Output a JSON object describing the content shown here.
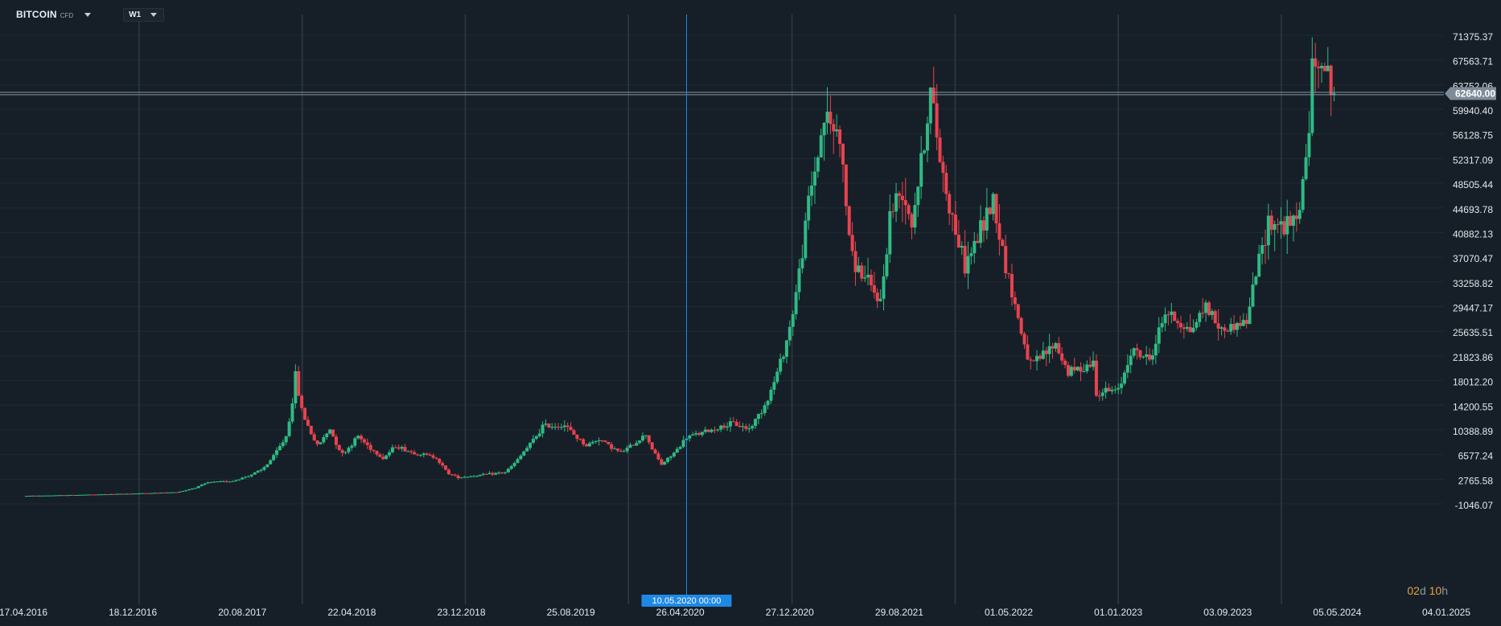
{
  "header": {
    "symbol": "BITCOIN",
    "symbol_type": "CFD",
    "timeframe": "W1"
  },
  "countdown": {
    "days": "02",
    "days_unit": "d",
    "hours": "10",
    "hours_unit": "h"
  },
  "colors": {
    "background": "#161f27",
    "bullish": "#2fba84",
    "bearish": "#e8434f",
    "crosshair": "#1e88e5",
    "price_line": "#8896a3",
    "grid": "#1f2a33",
    "text": "#e3e8ed"
  },
  "chart_data": {
    "type": "candlestick",
    "instrument": "BITCOIN",
    "timeframe": "W1",
    "y_ticks": [
      71375.37,
      67563.71,
      63752.06,
      59940.4,
      56128.75,
      52317.09,
      48505.44,
      44693.78,
      40882.13,
      37070.47,
      33258.82,
      29447.17,
      25635.51,
      21823.86,
      18012.2,
      14200.55,
      10388.89,
      6577.24,
      2765.58,
      -1046.07
    ],
    "y_tick_labels": [
      "71375.37",
      "67563.71",
      "63752.06",
      "59940.40",
      "56128.75",
      "52317.09",
      "48505.44",
      "44693.78",
      "40882.13",
      "37070.47",
      "33258.82",
      "29447.17",
      "25635.51",
      "21823.86",
      "18012.20",
      "14200.55",
      "10388.89",
      "6577.24",
      "2765.58",
      "-1046.07"
    ],
    "x_tick_labels": [
      "17.04.2016",
      "18.12.2016",
      "20.08.2017",
      "22.04.2018",
      "23.12.2018",
      "25.08.2019",
      "26.04.2020",
      "27.12.2020",
      "29.08.2021",
      "01.05.2022",
      "01.01.2023",
      "03.09.2023",
      "05.05.2024",
      "04.01.2025"
    ],
    "current_price": 62640.0,
    "current_price_label": "62640.00",
    "crosshair_label": "10.05.2020 00:00",
    "anchors": [
      [
        "17.04.2016",
        430
      ],
      [
        "18.12.2016",
        790
      ],
      [
        "26.03.2017",
        1000
      ],
      [
        "04.06.2017",
        2500
      ],
      [
        "30.07.2017",
        2750
      ],
      [
        "01.10.2017",
        4400
      ],
      [
        "05.11.2017",
        7300
      ],
      [
        "26.11.2017",
        9700
      ],
      [
        "17.12.2017",
        19000
      ],
      [
        "31.12.2017",
        13800
      ],
      [
        "04.02.2018",
        8200
      ],
      [
        "04.03.2018",
        10800
      ],
      [
        "01.04.2018",
        6900
      ],
      [
        "06.05.2018",
        9700
      ],
      [
        "01.07.2018",
        6300
      ],
      [
        "29.07.2018",
        8200
      ],
      [
        "02.09.2018",
        7200
      ],
      [
        "28.10.2018",
        6400
      ],
      [
        "25.11.2018",
        3900
      ],
      [
        "16.12.2018",
        3300
      ],
      [
        "24.02.2019",
        3800
      ],
      [
        "31.03.2019",
        4100
      ],
      [
        "12.05.2019",
        7300
      ],
      [
        "23.06.2019",
        11200
      ],
      [
        "11.08.2019",
        11400
      ],
      [
        "29.09.2019",
        8200
      ],
      [
        "27.10.2019",
        9300
      ],
      [
        "15.12.2019",
        7100
      ],
      [
        "09.02.2020",
        10000
      ],
      [
        "15.03.2020",
        5300
      ],
      [
        "10.05.2020",
        9500
      ],
      [
        "26.07.2020",
        11100
      ],
      [
        "23.08.2020",
        11600
      ],
      [
        "27.09.2020",
        10800
      ],
      [
        "08.11.2020",
        15500
      ],
      [
        "27.12.2020",
        26500
      ],
      [
        "07.02.2021",
        46000
      ],
      [
        "14.03.2021",
        59000
      ],
      [
        "18.04.2021",
        56000
      ],
      [
        "16.05.2021",
        37000
      ],
      [
        "18.07.2021",
        30500
      ],
      [
        "08.08.2021",
        44000
      ],
      [
        "05.09.2021",
        48000
      ],
      [
        "26.09.2021",
        43000
      ],
      [
        "07.11.2021",
        63000
      ],
      [
        "05.12.2021",
        50000
      ],
      [
        "23.01.2022",
        36000
      ],
      [
        "27.03.2022",
        46500
      ],
      [
        "15.05.2022",
        30000
      ],
      [
        "19.06.2022",
        20500
      ],
      [
        "14.08.2022",
        24000
      ],
      [
        "11.09.2022",
        19500
      ],
      [
        "06.11.2022",
        21000
      ],
      [
        "13.11.2022",
        16500
      ],
      [
        "01.01.2023",
        16700
      ],
      [
        "29.01.2023",
        23000
      ],
      [
        "12.03.2023",
        21500
      ],
      [
        "16.04.2023",
        29000
      ],
      [
        "11.06.2023",
        26000
      ],
      [
        "16.07.2023",
        30000
      ],
      [
        "20.08.2023",
        26000
      ],
      [
        "15.10.2023",
        27500
      ],
      [
        "05.11.2023",
        35000
      ],
      [
        "03.12.2023",
        43000
      ],
      [
        "14.01.2024",
        42000
      ],
      [
        "04.02.2024",
        43000
      ],
      [
        "25.02.2024",
        52000
      ],
      [
        "10.03.2024",
        66000
      ],
      [
        "31.03.2024",
        69000
      ],
      [
        "21.04.2024",
        63000
      ],
      [
        "28.04.2024",
        62640
      ]
    ]
  }
}
